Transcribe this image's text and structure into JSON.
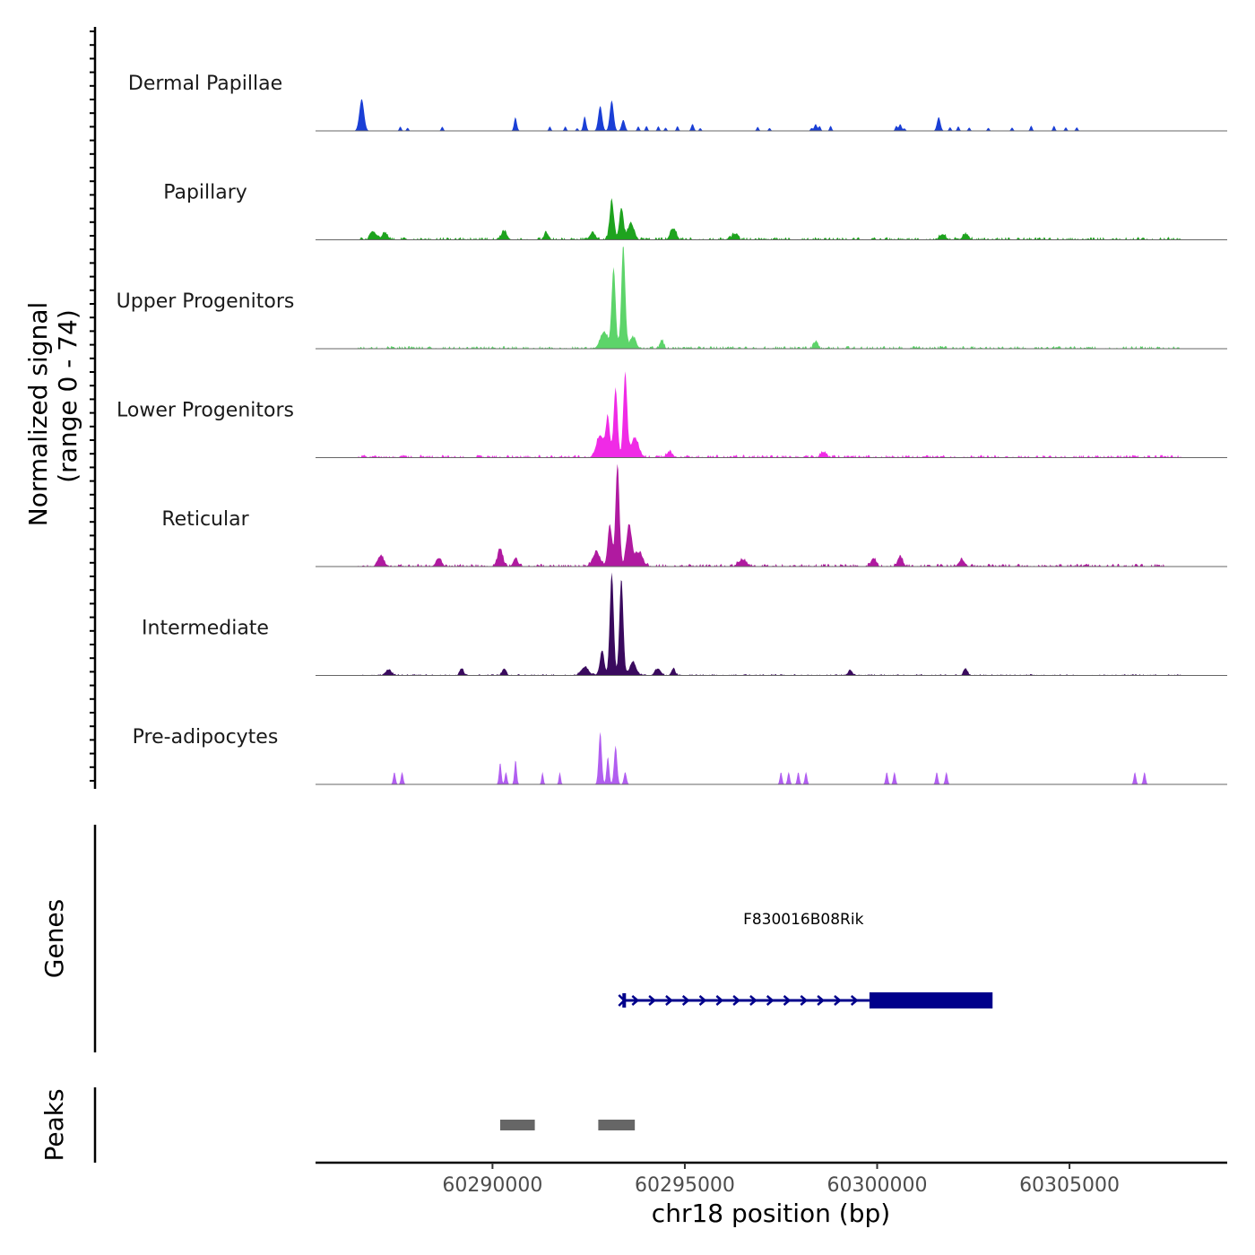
{
  "chart_data": {
    "type": "area",
    "y_axis_title": "Normalized signal",
    "y_axis_subtitle": "(range 0 - 74)",
    "y_range": [
      0,
      74
    ],
    "x_axis_title": "chr18 position (bp)",
    "x_range": [
      60285400,
      60309100
    ],
    "x_ticks": [
      60290000,
      60295000,
      60300000,
      60305000
    ],
    "x_tick_labels": [
      "60290000",
      "60295000",
      "60300000",
      "60305000"
    ],
    "tracks": [
      {
        "name": "Dermal Papillae",
        "color": "#1a3fd6",
        "background": 0,
        "noise_range": [
          60286500,
          60305800
        ],
        "noise_positions": [
          60287600,
          60287800,
          60288700,
          60290600,
          60291500,
          60291900,
          60292200,
          60292400,
          60293800,
          60294000,
          60294300,
          60294500,
          60294800,
          60295400,
          60296900,
          60297200,
          60298300,
          60298500,
          60298800,
          60300500,
          60300700,
          60301900,
          60302100,
          60302400,
          60302900,
          60303500,
          60304000,
          60304600,
          60304900,
          60305200
        ],
        "noise_max": 4,
        "peaks": [
          {
            "pos": 60286600,
            "height": 23,
            "width": 120
          },
          {
            "pos": 60290600,
            "height": 6,
            "width": 80
          },
          {
            "pos": 60292400,
            "height": 7,
            "width": 80
          },
          {
            "pos": 60292800,
            "height": 18,
            "width": 100
          },
          {
            "pos": 60293100,
            "height": 22,
            "width": 100
          },
          {
            "pos": 60293400,
            "height": 8,
            "width": 90
          },
          {
            "pos": 60295200,
            "height": 5,
            "width": 70
          },
          {
            "pos": 60298400,
            "height": 5,
            "width": 70
          },
          {
            "pos": 60300600,
            "height": 5,
            "width": 70
          },
          {
            "pos": 60301600,
            "height": 10,
            "width": 90
          }
        ]
      },
      {
        "name": "Papillary",
        "color": "#1ea31e",
        "background": 2,
        "noise_range": [
          60286500,
          60308000
        ],
        "noise_positions": [],
        "noise_max": 3,
        "peaks": [
          {
            "pos": 60286900,
            "height": 6,
            "width": 150
          },
          {
            "pos": 60287200,
            "height": 5,
            "width": 150
          },
          {
            "pos": 60290300,
            "height": 6,
            "width": 150
          },
          {
            "pos": 60291400,
            "height": 5,
            "width": 120
          },
          {
            "pos": 60292600,
            "height": 5,
            "width": 150
          },
          {
            "pos": 60293100,
            "height": 28,
            "width": 110
          },
          {
            "pos": 60293350,
            "height": 22,
            "width": 110
          },
          {
            "pos": 60293600,
            "height": 12,
            "width": 160
          },
          {
            "pos": 60294700,
            "height": 8,
            "width": 150
          },
          {
            "pos": 60296300,
            "height": 4,
            "width": 150
          },
          {
            "pos": 60301700,
            "height": 4,
            "width": 150
          },
          {
            "pos": 60302300,
            "height": 4,
            "width": 150
          }
        ]
      },
      {
        "name": "Upper Progenitors",
        "color": "#5dd46a",
        "background": 2,
        "noise_range": [
          60286500,
          60308000
        ],
        "noise_positions": [],
        "noise_max": 2,
        "peaks": [
          {
            "pos": 60292900,
            "height": 12,
            "width": 200
          },
          {
            "pos": 60293150,
            "height": 58,
            "width": 100
          },
          {
            "pos": 60293400,
            "height": 74,
            "width": 100
          },
          {
            "pos": 60293650,
            "height": 8,
            "width": 160
          },
          {
            "pos": 60294400,
            "height": 6,
            "width": 100
          },
          {
            "pos": 60298400,
            "height": 5,
            "width": 100
          }
        ]
      },
      {
        "name": "Lower Progenitors",
        "color": "#f02ae6",
        "background": 2,
        "noise_range": [
          60286500,
          60308000
        ],
        "noise_positions": [],
        "noise_max": 3,
        "peaks": [
          {
            "pos": 60292800,
            "height": 16,
            "width": 200
          },
          {
            "pos": 60293000,
            "height": 28,
            "width": 100
          },
          {
            "pos": 60293200,
            "height": 50,
            "width": 100
          },
          {
            "pos": 60293450,
            "height": 60,
            "width": 100
          },
          {
            "pos": 60293700,
            "height": 14,
            "width": 200
          },
          {
            "pos": 60294600,
            "height": 4,
            "width": 150
          },
          {
            "pos": 60298600,
            "height": 4,
            "width": 150
          }
        ]
      },
      {
        "name": "Reticular",
        "color": "#b01aa0",
        "background": 2,
        "noise_range": [
          60286500,
          60307500
        ],
        "noise_positions": [],
        "noise_max": 3,
        "peaks": [
          {
            "pos": 60287100,
            "height": 8,
            "width": 150
          },
          {
            "pos": 60288600,
            "height": 5,
            "width": 150
          },
          {
            "pos": 60290200,
            "height": 13,
            "width": 130
          },
          {
            "pos": 60290600,
            "height": 6,
            "width": 120
          },
          {
            "pos": 60292700,
            "height": 10,
            "width": 200
          },
          {
            "pos": 60293050,
            "height": 30,
            "width": 110
          },
          {
            "pos": 60293250,
            "height": 74,
            "width": 100
          },
          {
            "pos": 60293550,
            "height": 30,
            "width": 140
          },
          {
            "pos": 60293800,
            "height": 10,
            "width": 200
          },
          {
            "pos": 60296500,
            "height": 5,
            "width": 200
          },
          {
            "pos": 60299900,
            "height": 6,
            "width": 130
          },
          {
            "pos": 60300600,
            "height": 7,
            "width": 130
          },
          {
            "pos": 60302200,
            "height": 5,
            "width": 150
          }
        ]
      },
      {
        "name": "Intermediate",
        "color": "#3a0a5e",
        "background": 1,
        "noise_range": [
          60286500,
          60308000
        ],
        "noise_positions": [],
        "noise_max": 3,
        "peaks": [
          {
            "pos": 60287300,
            "height": 4,
            "width": 150
          },
          {
            "pos": 60289200,
            "height": 5,
            "width": 100
          },
          {
            "pos": 60290300,
            "height": 5,
            "width": 100
          },
          {
            "pos": 60292400,
            "height": 6,
            "width": 200
          },
          {
            "pos": 60292850,
            "height": 18,
            "width": 110
          },
          {
            "pos": 60293100,
            "height": 74,
            "width": 100
          },
          {
            "pos": 60293350,
            "height": 70,
            "width": 100
          },
          {
            "pos": 60293650,
            "height": 10,
            "width": 160
          },
          {
            "pos": 60294300,
            "height": 5,
            "width": 150
          },
          {
            "pos": 60294700,
            "height": 5,
            "width": 100
          },
          {
            "pos": 60299300,
            "height": 4,
            "width": 100
          },
          {
            "pos": 60302300,
            "height": 5,
            "width": 100
          }
        ]
      },
      {
        "name": "Pre-adipocytes",
        "color": "#b15ef0",
        "background": 0,
        "noise_range": [
          60286500,
          60308000
        ],
        "noise_positions": [],
        "noise_max": 0,
        "peaks": [
          {
            "pos": 60287450,
            "height": 9,
            "width": 60
          },
          {
            "pos": 60287650,
            "height": 9,
            "width": 60
          },
          {
            "pos": 60290200,
            "height": 16,
            "width": 60
          },
          {
            "pos": 60290350,
            "height": 9,
            "width": 60
          },
          {
            "pos": 60290600,
            "height": 18,
            "width": 60
          },
          {
            "pos": 60291300,
            "height": 9,
            "width": 50
          },
          {
            "pos": 60291750,
            "height": 9,
            "width": 50
          },
          {
            "pos": 60292800,
            "height": 38,
            "width": 80
          },
          {
            "pos": 60293000,
            "height": 20,
            "width": 70
          },
          {
            "pos": 60293200,
            "height": 28,
            "width": 80
          },
          {
            "pos": 60293450,
            "height": 9,
            "width": 70
          },
          {
            "pos": 60297500,
            "height": 9,
            "width": 60
          },
          {
            "pos": 60297700,
            "height": 9,
            "width": 60
          },
          {
            "pos": 60297950,
            "height": 9,
            "width": 60
          },
          {
            "pos": 60298150,
            "height": 9,
            "width": 60
          },
          {
            "pos": 60300250,
            "height": 9,
            "width": 60
          },
          {
            "pos": 60300450,
            "height": 9,
            "width": 60
          },
          {
            "pos": 60301550,
            "height": 9,
            "width": 60
          },
          {
            "pos": 60301800,
            "height": 9,
            "width": 60
          },
          {
            "pos": 60306700,
            "height": 9,
            "width": 60
          },
          {
            "pos": 60306950,
            "height": 9,
            "width": 60
          }
        ]
      }
    ],
    "genes": {
      "title": "Genes",
      "color": "#00008b",
      "items": [
        {
          "name": "F830016B08Rik",
          "strand": "+",
          "start": 60293400,
          "thin_end": 60299800,
          "thick_start": 60299800,
          "end": 60303000
        }
      ]
    },
    "peaks_track": {
      "title": "Peaks",
      "color": "#666666",
      "regions": [
        {
          "start": 60290200,
          "end": 60291100
        },
        {
          "start": 60292750,
          "end": 60293700
        }
      ]
    }
  }
}
